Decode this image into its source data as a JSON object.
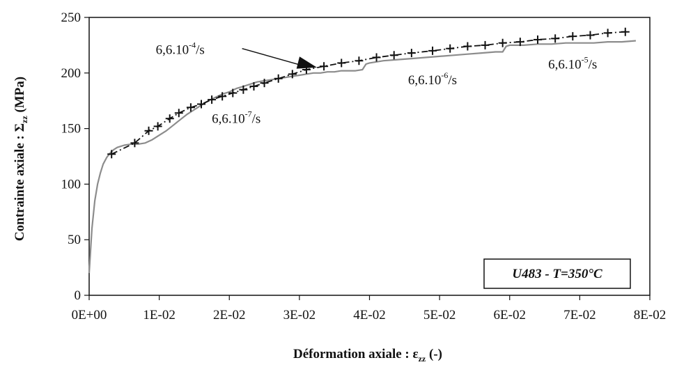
{
  "chart_data": {
    "type": "line",
    "xlabel": "Déformation axiale : ε",
    "xlabel_subscript": "zz",
    "xlabel_suffix": " (-)",
    "ylabel": "Contrainte axiale :   Σ",
    "ylabel_subscript": "zz",
    "ylabel_suffix": " (MPa)",
    "xlim": [
      0,
      0.08
    ],
    "ylim": [
      0,
      250
    ],
    "x_ticks": [
      0,
      0.01,
      0.02,
      0.03,
      0.04,
      0.05,
      0.06,
      0.07,
      0.08
    ],
    "x_tick_labels": [
      "0E+00",
      "1E-02",
      "2E-02",
      "3E-02",
      "4E-02",
      "5E-02",
      "6E-02",
      "7E-02",
      "8E-02"
    ],
    "y_ticks": [
      0,
      50,
      100,
      150,
      200,
      250
    ],
    "y_tick_labels": [
      "0",
      "50",
      "100",
      "150",
      "200",
      "250"
    ],
    "grid": false,
    "colors": {
      "experiment": "#8c8c8c",
      "model": "#111111",
      "arrow": "#111111"
    },
    "series": [
      {
        "style": "solid-gray",
        "x": [
          0.0,
          0.0004,
          0.0008,
          0.0012,
          0.0016,
          0.002,
          0.0025,
          0.003,
          0.0035,
          0.004,
          0.005,
          0.006,
          0.007,
          0.008,
          0.009,
          0.01,
          0.011,
          0.012,
          0.013,
          0.014,
          0.015,
          0.016,
          0.017,
          0.018,
          0.019,
          0.02,
          0.021,
          0.022,
          0.023,
          0.024,
          0.025,
          0.026,
          0.027,
          0.028,
          0.029,
          0.03,
          0.031,
          0.032,
          0.033,
          0.034,
          0.035,
          0.036,
          0.037,
          0.038,
          0.039,
          0.0395,
          0.04,
          0.041,
          0.042,
          0.044,
          0.046,
          0.048,
          0.05,
          0.052,
          0.054,
          0.056,
          0.058,
          0.059,
          0.0595,
          0.06,
          0.062,
          0.064,
          0.066,
          0.068,
          0.07,
          0.072,
          0.074,
          0.076,
          0.078
        ],
        "y": [
          20,
          60,
          85,
          100,
          110,
          118,
          124,
          128,
          131,
          133,
          135,
          136,
          136,
          137,
          140,
          144,
          148,
          153,
          158,
          163,
          167,
          171,
          175,
          178,
          181,
          183,
          186,
          188,
          190,
          192,
          193,
          194,
          195,
          196,
          197,
          198,
          199,
          200,
          200,
          201,
          201,
          202,
          202,
          202,
          203,
          208,
          209,
          210,
          211,
          212,
          213,
          214,
          215,
          216,
          217,
          218,
          219,
          219,
          224,
          225,
          225,
          226,
          226,
          227,
          227,
          227,
          228,
          228,
          229
        ]
      },
      {
        "style": "dash-dot-crosses",
        "x": [
          0.0032,
          0.0065,
          0.0085,
          0.0098,
          0.0115,
          0.0128,
          0.0145,
          0.016,
          0.0175,
          0.019,
          0.0205,
          0.022,
          0.0235,
          0.025,
          0.027,
          0.029,
          0.031,
          0.0335,
          0.036,
          0.0385,
          0.041,
          0.0435,
          0.046,
          0.049,
          0.0515,
          0.054,
          0.0565,
          0.059,
          0.0615,
          0.064,
          0.0665,
          0.069,
          0.0715,
          0.074,
          0.0765
        ],
        "y": [
          127,
          137,
          148,
          152,
          159,
          164,
          169,
          172,
          176,
          179,
          182,
          185,
          188,
          191,
          195,
          199,
          203,
          206,
          209,
          211,
          214,
          216,
          218,
          220,
          222,
          224,
          225,
          227,
          228,
          230,
          231,
          233,
          234,
          236,
          237
        ]
      }
    ],
    "annotations": [
      {
        "base": "6,6.10",
        "exp": "-4",
        "unit": "/s",
        "x": 0.0095,
        "y": 217,
        "arrow_to": [
          0.0325,
          205
        ]
      },
      {
        "base": "6,6.10",
        "exp": "-6",
        "unit": "/s",
        "x": 0.0455,
        "y": 190
      },
      {
        "base": "6,6.10",
        "exp": "-7",
        "unit": "/s",
        "x": 0.0175,
        "y": 155
      },
      {
        "base": "6,6.10",
        "exp": "-5",
        "unit": "/s",
        "x": 0.0655,
        "y": 204
      }
    ],
    "box_label": "U483 - T=350°C"
  }
}
